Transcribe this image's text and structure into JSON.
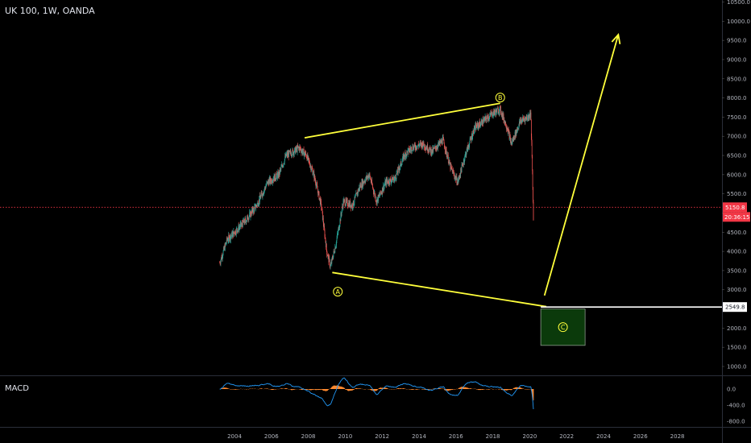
{
  "header": {
    "title": "UK 100, 1W, OANDA"
  },
  "indicator": {
    "label": "MACD"
  },
  "price_axis": {
    "ticks": [
      "10500.0",
      "10000.0",
      "9500.0",
      "9000.0",
      "8500.0",
      "8000.0",
      "7500.0",
      "7000.0",
      "6500.0",
      "6000.0",
      "5500.0",
      "5000.0",
      "4500.0",
      "4000.0",
      "3500.0",
      "3000.0",
      "2500.0",
      "2000.0",
      "1500.0",
      "1000.0"
    ]
  },
  "macd_axis": {
    "ticks": [
      "0.0",
      "-400.0",
      "-800.0"
    ]
  },
  "time_axis": {
    "ticks": [
      "2004",
      "2006",
      "2008",
      "2010",
      "2012",
      "2014",
      "2016",
      "2018",
      "2020",
      "2022",
      "2024",
      "2026",
      "2028"
    ]
  },
  "last_price": {
    "value": "5150.8",
    "countdown": "20:36:15",
    "color": "#f23645"
  },
  "target_price": {
    "value": "2549.8"
  },
  "wave_labels": [
    "A",
    "B",
    "C"
  ],
  "colors": {
    "up": "#26a69a",
    "down": "#ef5350",
    "annotation": "#ffff3b",
    "macd_line": "#2196f3",
    "macd_hist": "#ff8a30",
    "box": "#0b3a0b"
  },
  "chart_data": {
    "type": "line",
    "title": "UK 100, 1W, OANDA",
    "x_range": [
      2002.8,
      2029.8
    ],
    "y_range": [
      750,
      10700
    ],
    "series": [
      {
        "x": [
          2003.2,
          2003.6,
          2004.0,
          2004.6,
          2005.2,
          2005.8,
          2006.4,
          2006.8,
          2007.2,
          2007.5,
          2007.9,
          2008.3,
          2008.7,
          2009.0,
          2009.2,
          2009.5,
          2009.9,
          2010.4,
          2010.8,
          2011.3,
          2011.7,
          2012.2,
          2012.7,
          2013.2,
          2013.6,
          2014.2,
          2014.7,
          2015.3,
          2015.7,
          2016.1,
          2016.5,
          2017.0,
          2017.5,
          2018.0,
          2018.4,
          2018.8,
          2019.0,
          2019.5,
          2019.9,
          2020.05,
          2020.12,
          2020.2
        ],
        "y": [
          3700,
          4300,
          4500,
          4800,
          5200,
          5800,
          6000,
          6500,
          6600,
          6700,
          6500,
          6000,
          5200,
          4000,
          3600,
          4200,
          5300,
          5200,
          5700,
          6000,
          5300,
          5800,
          5900,
          6500,
          6700,
          6800,
          6600,
          6900,
          6200,
          5800,
          6500,
          7200,
          7400,
          7600,
          7700,
          7200,
          6800,
          7400,
          7500,
          7600,
          6500,
          4900
        ]
      }
    ],
    "annotations": {
      "upper_line": [
        [
          2007.8,
          6960
        ],
        [
          2018.4,
          7860
        ]
      ],
      "lower_line": [
        [
          2009.3,
          3450
        ],
        [
          2020.9,
          2560
        ]
      ],
      "target_arrow": [
        [
          2020.8,
          2850
        ],
        [
          2024.8,
          9650
        ]
      ],
      "target_zone": {
        "x": [
          2020.6,
          2023.0
        ],
        "y": [
          1550,
          2500
        ]
      }
    }
  }
}
